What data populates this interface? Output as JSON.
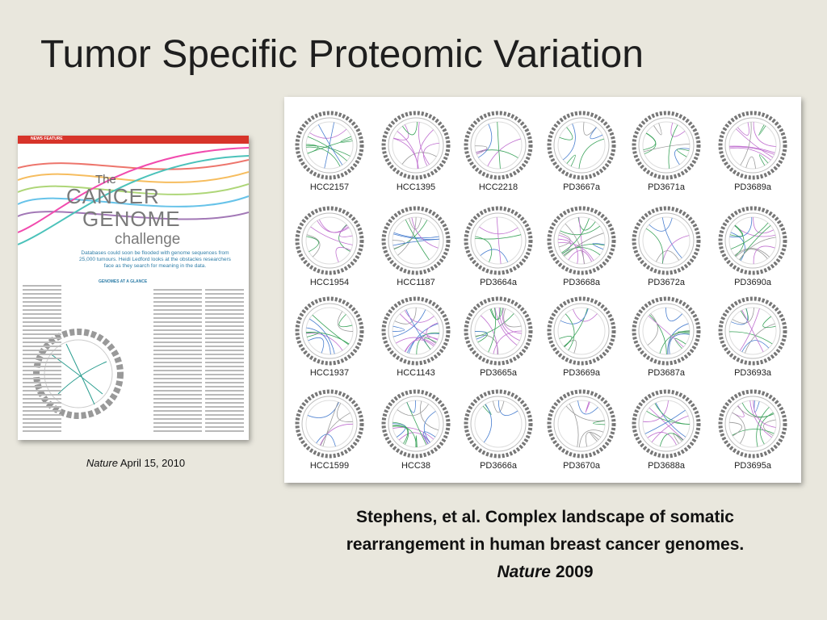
{
  "title": "Tumor Specific Proteomic Variation",
  "magazine": {
    "section": "NEWS FEATURE",
    "headline": [
      "The",
      "CANCER",
      "GENOME",
      "challenge"
    ],
    "standfirst": "Databases could soon be flooded with genome sequences from 25,000 tumours. Heidi Ledford looks at the obstacles researchers face as they search for meaning in the data.",
    "box_title": "GENOMES AT A GLANCE"
  },
  "magazine_caption": {
    "journal": "Nature",
    "date": "April 15, 2010"
  },
  "circos_panel": {
    "samples": [
      "HCC2157",
      "HCC1395",
      "HCC2218",
      "PD3667a",
      "PD3671a",
      "PD3689a",
      "HCC1954",
      "HCC1187",
      "PD3664a",
      "PD3668a",
      "PD3672a",
      "PD3690a",
      "HCC1937",
      "HCC1143",
      "PD3665a",
      "PD3669a",
      "PD3687a",
      "PD3693a",
      "HCC1599",
      "HCC38",
      "PD3666a",
      "PD3670a",
      "PD3688a",
      "PD3695a"
    ]
  },
  "citation": {
    "lines": [
      "Stephens, et al. Complex landscape of somatic",
      "rearrangement in human breast cancer genomes."
    ],
    "journal": "Nature",
    "year": "2009"
  }
}
